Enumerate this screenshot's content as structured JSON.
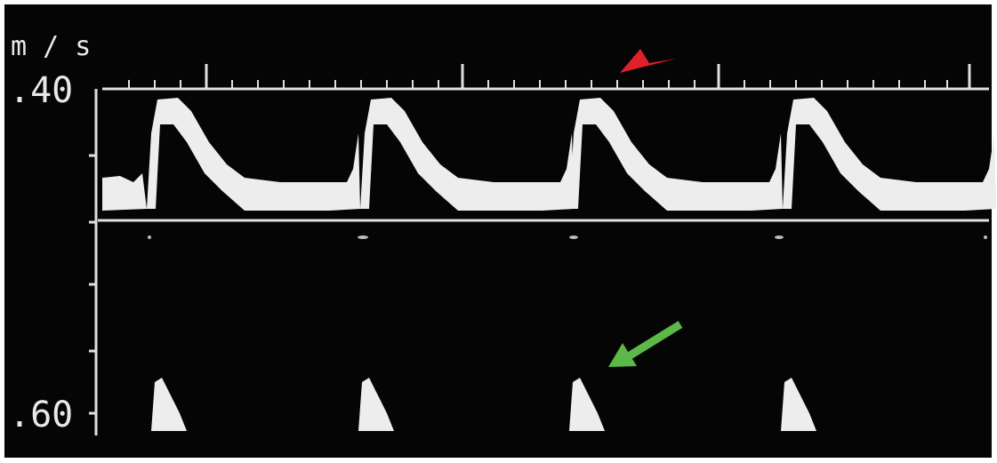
{
  "scale": {
    "unit": "m / s",
    "labels": [
      ".40",
      ".60"
    ]
  }
}
